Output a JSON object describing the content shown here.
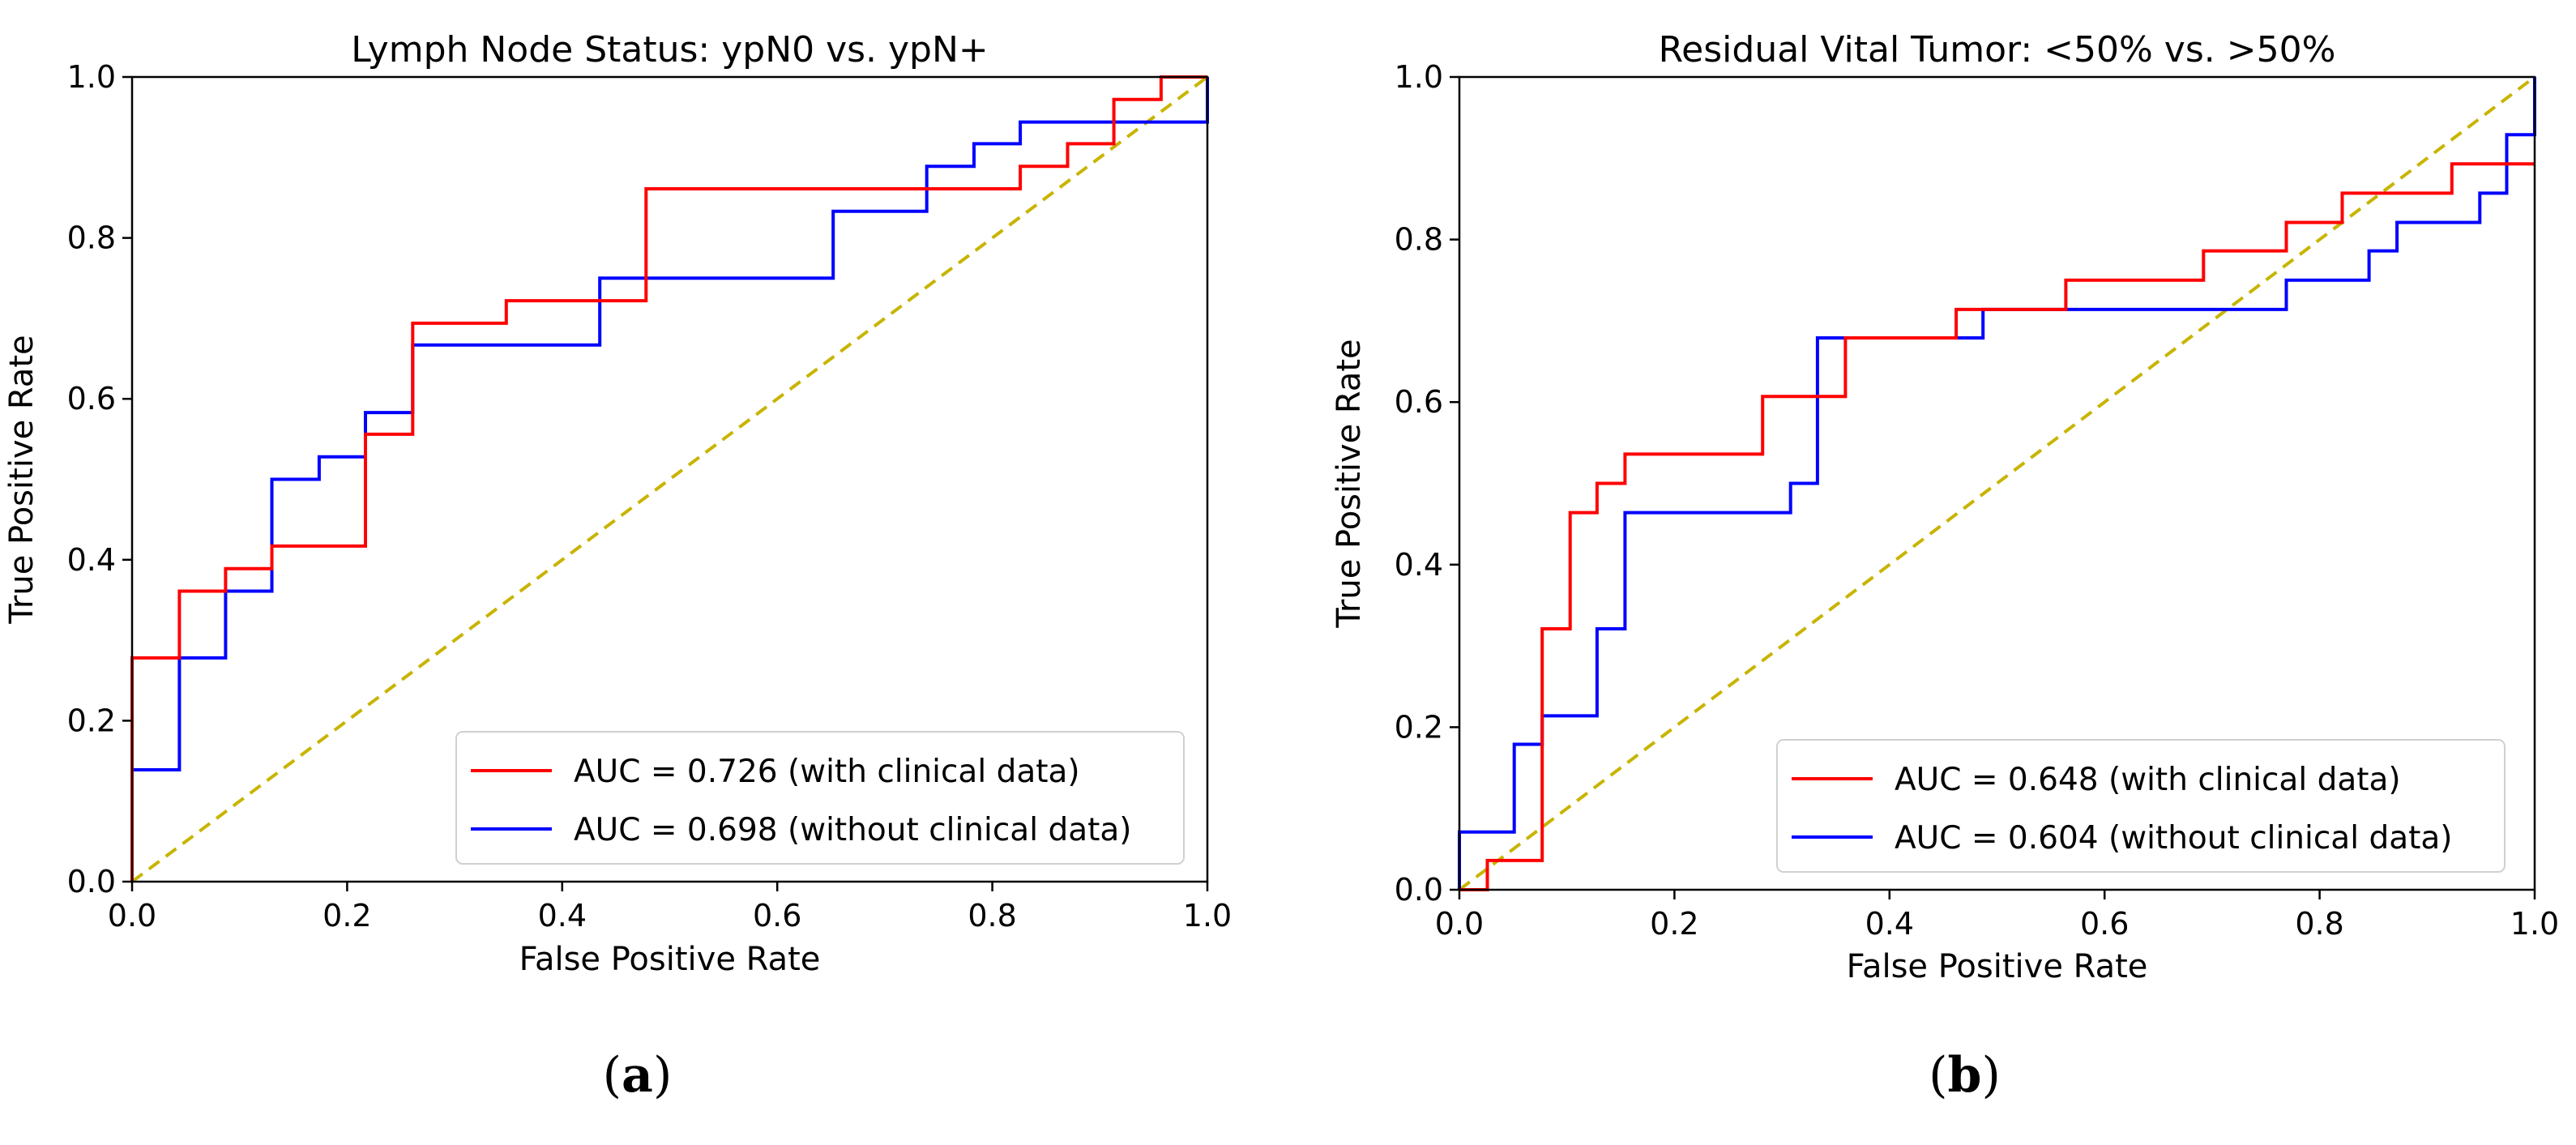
{
  "chart_data": [
    {
      "type": "line",
      "panel_label": "a",
      "title": "Lymph Node Status: ypN0 vs. ypN+",
      "xlabel": "False Positive Rate",
      "ylabel": "True Positive Rate",
      "xlim": [
        0.0,
        1.0
      ],
      "ylim": [
        0.0,
        1.0
      ],
      "x_ticks": [
        "0.0",
        "0.2",
        "0.4",
        "0.6",
        "0.8",
        "1.0"
      ],
      "y_ticks": [
        "0.0",
        "0.2",
        "0.4",
        "0.6",
        "0.8",
        "1.0"
      ],
      "legend_position": "lower-right",
      "series": [
        {
          "name": "AUC = 0.726 (with clinical data)",
          "color": "#ff0000",
          "x": [
            0.0,
            0.0,
            0.044,
            0.044,
            0.087,
            0.087,
            0.13,
            0.13,
            0.217,
            0.217,
            0.261,
            0.261,
            0.348,
            0.348,
            0.478,
            0.478,
            0.826,
            0.826,
            0.87,
            0.87,
            0.913,
            0.913,
            0.957,
            0.957,
            1.0
          ],
          "y": [
            0.0,
            0.278,
            0.278,
            0.361,
            0.361,
            0.389,
            0.389,
            0.417,
            0.417,
            0.556,
            0.556,
            0.694,
            0.694,
            0.722,
            0.722,
            0.861,
            0.861,
            0.889,
            0.889,
            0.917,
            0.917,
            0.972,
            0.972,
            1.0,
            1.0
          ]
        },
        {
          "name": "AUC = 0.698 (without clinical data)",
          "color": "#0000ff",
          "x": [
            0.0,
            0.0,
            0.044,
            0.044,
            0.087,
            0.087,
            0.13,
            0.13,
            0.174,
            0.174,
            0.217,
            0.217,
            0.261,
            0.261,
            0.435,
            0.435,
            0.652,
            0.652,
            0.739,
            0.739,
            0.783,
            0.783,
            0.826,
            0.826,
            1.0,
            1.0
          ],
          "y": [
            0.0,
            0.139,
            0.139,
            0.278,
            0.278,
            0.361,
            0.361,
            0.5,
            0.5,
            0.528,
            0.528,
            0.583,
            0.583,
            0.667,
            0.667,
            0.75,
            0.75,
            0.833,
            0.833,
            0.889,
            0.889,
            0.917,
            0.917,
            0.944,
            0.944,
            1.0
          ]
        },
        {
          "name": "chance",
          "color": "#c8b400",
          "dashed": true,
          "x": [
            0.0,
            1.0
          ],
          "y": [
            0.0,
            1.0
          ]
        }
      ]
    },
    {
      "type": "line",
      "panel_label": "b",
      "title": "Residual Vital Tumor: <50% vs. >50%",
      "xlabel": "False Positive Rate",
      "ylabel": "True Positive Rate",
      "xlim": [
        0.0,
        1.0
      ],
      "ylim": [
        0.0,
        1.0
      ],
      "x_ticks": [
        "0.0",
        "0.2",
        "0.4",
        "0.6",
        "0.8",
        "1.0"
      ],
      "y_ticks": [
        "0.0",
        "0.2",
        "0.4",
        "0.6",
        "0.8",
        "1.0"
      ],
      "legend_position": "lower-right",
      "series": [
        {
          "name": "AUC = 0.648 (with clinical data)",
          "color": "#ff0000",
          "x": [
            0.0,
            0.026,
            0.026,
            0.077,
            0.077,
            0.103,
            0.103,
            0.128,
            0.128,
            0.154,
            0.154,
            0.282,
            0.282,
            0.359,
            0.359,
            0.462,
            0.462,
            0.564,
            0.564,
            0.692,
            0.692,
            0.769,
            0.769,
            0.821,
            0.821,
            0.923,
            0.923,
            1.0
          ],
          "y": [
            0.0,
            0.0,
            0.036,
            0.036,
            0.321,
            0.321,
            0.464,
            0.464,
            0.5,
            0.5,
            0.536,
            0.536,
            0.607,
            0.607,
            0.679,
            0.679,
            0.714,
            0.714,
            0.75,
            0.75,
            0.786,
            0.786,
            0.821,
            0.821,
            0.857,
            0.857,
            0.893,
            0.893
          ]
        },
        {
          "name": "AUC = 0.604 (without clinical data)",
          "color": "#0000ff",
          "x": [
            0.0,
            0.0,
            0.051,
            0.051,
            0.077,
            0.077,
            0.128,
            0.128,
            0.154,
            0.154,
            0.308,
            0.308,
            0.333,
            0.333,
            0.487,
            0.487,
            0.769,
            0.769,
            0.846,
            0.846,
            0.872,
            0.872,
            0.949,
            0.949,
            0.974,
            0.974,
            1.0,
            1.0
          ],
          "y": [
            0.0,
            0.071,
            0.071,
            0.179,
            0.179,
            0.214,
            0.214,
            0.321,
            0.321,
            0.464,
            0.464,
            0.5,
            0.5,
            0.679,
            0.679,
            0.714,
            0.714,
            0.75,
            0.75,
            0.786,
            0.786,
            0.821,
            0.821,
            0.857,
            0.857,
            0.929,
            0.929,
            1.0
          ]
        },
        {
          "name": "chance",
          "color": "#c8b400",
          "dashed": true,
          "x": [
            0.0,
            1.0
          ],
          "y": [
            0.0,
            1.0
          ]
        }
      ]
    }
  ]
}
